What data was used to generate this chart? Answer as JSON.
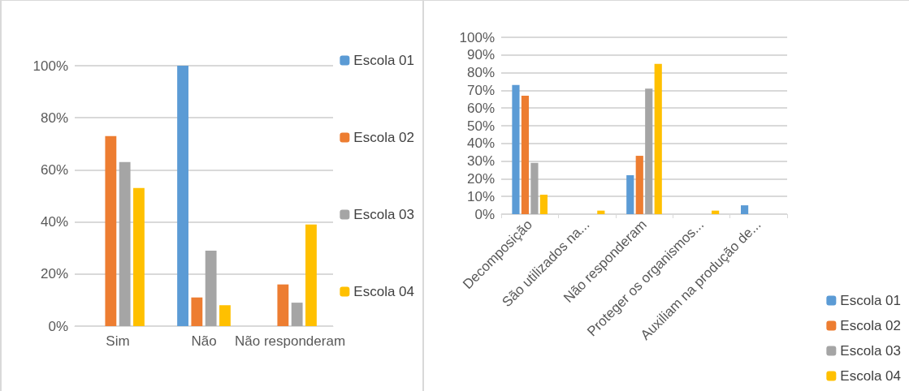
{
  "chart_data": [
    {
      "type": "bar",
      "categories": [
        "Sim",
        "Não",
        "Não responderam"
      ],
      "series": [
        {
          "name": "Escola 01",
          "color": "#5b9bd5",
          "values": [
            0,
            100,
            0
          ]
        },
        {
          "name": "Escola 02",
          "color": "#ed7d31",
          "values": [
            73,
            11,
            16
          ]
        },
        {
          "name": "Escola 03",
          "color": "#a5a5a5",
          "values": [
            63,
            29,
            9
          ]
        },
        {
          "name": "Escola 04",
          "color": "#ffc000",
          "values": [
            53,
            8,
            39
          ]
        }
      ],
      "ylim": [
        0,
        100
      ],
      "yticks": [
        {
          "value": 0,
          "label": "0%"
        },
        {
          "value": 20,
          "label": "20%"
        },
        {
          "value": 40,
          "label": "40%"
        },
        {
          "value": 60,
          "label": "60%"
        },
        {
          "value": 80,
          "label": "80%"
        },
        {
          "value": 100,
          "label": "100%"
        }
      ],
      "grid": "y",
      "legend": "right"
    },
    {
      "type": "bar",
      "categories": [
        "Decomposição",
        "São utilizados na...",
        "Não responderam",
        "Proteger os organismos...",
        "Auxiliam na produção de..."
      ],
      "series": [
        {
          "name": "Escola 01",
          "color": "#5b9bd5",
          "values": [
            73,
            0,
            22,
            0,
            5
          ]
        },
        {
          "name": "Escola 02",
          "color": "#ed7d31",
          "values": [
            67,
            0,
            33,
            0,
            0
          ]
        },
        {
          "name": "Escola 03",
          "color": "#a5a5a5",
          "values": [
            29,
            0,
            71,
            0,
            0
          ]
        },
        {
          "name": "Escola 04",
          "color": "#ffc000",
          "values": [
            11,
            2,
            85,
            2,
            0
          ]
        }
      ],
      "ylim": [
        0,
        100
      ],
      "yticks": [
        {
          "value": 0,
          "label": "0%"
        },
        {
          "value": 10,
          "label": "10%"
        },
        {
          "value": 20,
          "label": "20%"
        },
        {
          "value": 30,
          "label": "30%"
        },
        {
          "value": 40,
          "label": "40%"
        },
        {
          "value": 50,
          "label": "50%"
        },
        {
          "value": 60,
          "label": "60%"
        },
        {
          "value": 70,
          "label": "70%"
        },
        {
          "value": 80,
          "label": "80%"
        },
        {
          "value": 90,
          "label": "90%"
        },
        {
          "value": 100,
          "label": "100%"
        }
      ],
      "grid": "y",
      "legend": "bottom right"
    }
  ]
}
